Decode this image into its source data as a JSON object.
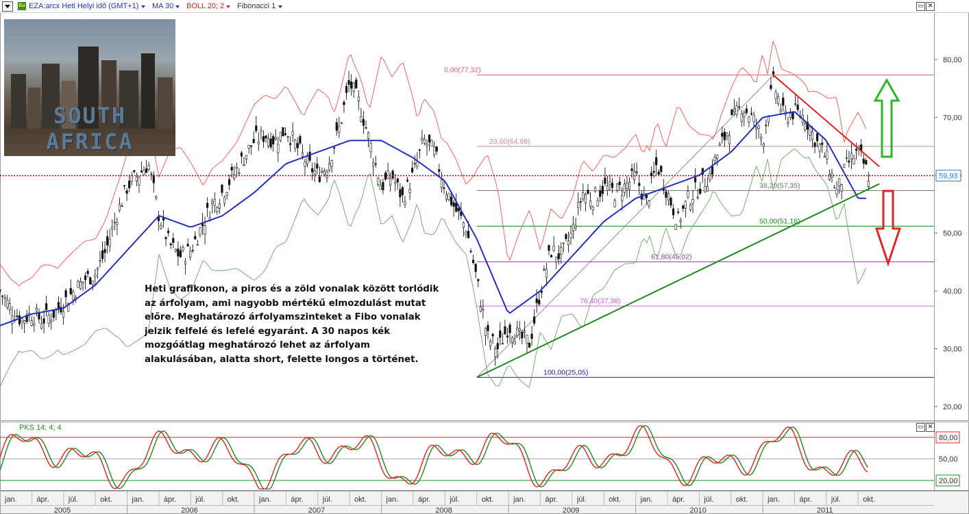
{
  "header": {
    "instrument": "EZA:arcx Heti Helyi idő (GMT+1)",
    "ma": "MA 30",
    "boll": "BOLL 20; 2",
    "fibo": "Fibonacci 1",
    "pks": "PKS 14; 4; 4"
  },
  "photo_caption": "SOUTH AFRICA",
  "comment": "Heti grafikonon, a piros és a zöld vonalak között torlódik az árfolyam, ami nagyobb mértékű elmozdulást mutat előre. Meghatározó árfolyamszinteket a Fibo vonalak jelzik felfelé és lefelé egyaránt. A 30 napos kék mozgóátlag meghatározó lehet az árfolyam alakulásában, alatta short, felette longos a történet.",
  "colors": {
    "price": "#1a1a1a",
    "ma": "#1f2fbf",
    "boll_upper": "#ff5050",
    "boll_lower": "#6aa56a",
    "resistance": "#e62020",
    "support": "#1e8a1e",
    "stoch_k": "#e62020",
    "stoch_d": "#1e8a1e"
  },
  "icons": {
    "up_arrow": "green-up-arrow",
    "down_arrow": "red-down-arrow"
  },
  "chart_data": [
    {
      "type": "candlestick",
      "title": "EZA:arcx Heti",
      "ylim": [
        20,
        85
      ],
      "yticks": [
        "20,00",
        "30,00",
        "40,00",
        "50,00",
        "60,00",
        "70,00",
        "80,00"
      ],
      "current_price": "59,93",
      "x_months": [
        "jan.",
        "ápr.",
        "júl.",
        "okt.",
        "jan.",
        "ápr.",
        "júl.",
        "okt.",
        "jan.",
        "ápr.",
        "júl.",
        "okt.",
        "jan.",
        "ápr.",
        "júl.",
        "okt.",
        "jan.",
        "ápr.",
        "júl.",
        "okt.",
        "jan.",
        "ápr.",
        "júl.",
        "okt.",
        "jan.",
        "ápr.",
        "júl.",
        "okt."
      ],
      "x_years": [
        "2005",
        "2006",
        "2007",
        "2008",
        "2009",
        "2010",
        "2011"
      ],
      "close_path": [
        [
          "2005-01",
          40
        ],
        [
          "2005-02",
          37
        ],
        [
          "2005-03",
          35
        ],
        [
          "2005-04",
          36
        ],
        [
          "2005-05",
          35
        ],
        [
          "2005-06",
          36
        ],
        [
          "2005-07",
          38
        ],
        [
          "2005-08",
          40
        ],
        [
          "2005-09",
          42
        ],
        [
          "2005-10",
          43
        ],
        [
          "2005-11",
          47
        ],
        [
          "2005-12",
          53
        ],
        [
          "2006-01",
          58
        ],
        [
          "2006-02",
          60
        ],
        [
          "2006-03",
          62
        ],
        [
          "2006-04",
          53
        ],
        [
          "2006-05",
          48
        ],
        [
          "2006-06",
          46
        ],
        [
          "2006-07",
          47
        ],
        [
          "2006-08",
          51
        ],
        [
          "2006-09",
          55
        ],
        [
          "2006-10",
          57
        ],
        [
          "2006-11",
          60
        ],
        [
          "2006-12",
          63
        ],
        [
          "2007-01",
          66
        ],
        [
          "2007-02",
          67
        ],
        [
          "2007-03",
          66
        ],
        [
          "2007-04",
          68
        ],
        [
          "2007-05",
          65
        ],
        [
          "2007-06",
          62
        ],
        [
          "2007-07",
          60
        ],
        [
          "2007-08",
          62
        ],
        [
          "2007-09",
          68
        ],
        [
          "2007-10",
          76
        ],
        [
          "2007-11",
          72
        ],
        [
          "2007-12",
          65
        ],
        [
          "2008-01",
          58
        ],
        [
          "2008-02",
          60
        ],
        [
          "2008-03",
          56
        ],
        [
          "2008-04",
          60
        ],
        [
          "2008-05",
          66
        ],
        [
          "2008-06",
          64
        ],
        [
          "2008-07",
          58
        ],
        [
          "2008-08",
          54
        ],
        [
          "2008-09",
          51
        ],
        [
          "2008-10",
          42
        ],
        [
          "2008-11",
          32
        ],
        [
          "2008-12",
          30
        ],
        [
          "2009-01",
          34
        ],
        [
          "2009-02",
          32
        ],
        [
          "2009-03",
          31
        ],
        [
          "2009-04",
          40
        ],
        [
          "2009-05",
          47
        ],
        [
          "2009-06",
          46
        ],
        [
          "2009-07",
          50
        ],
        [
          "2009-08",
          57
        ],
        [
          "2009-09",
          56
        ],
        [
          "2009-10",
          58
        ],
        [
          "2009-11",
          57
        ],
        [
          "2009-12",
          58
        ],
        [
          "2010-01",
          60
        ],
        [
          "2010-02",
          55
        ],
        [
          "2010-03",
          62
        ],
        [
          "2010-04",
          57
        ],
        [
          "2010-05",
          52
        ],
        [
          "2010-06",
          56
        ],
        [
          "2010-07",
          58
        ],
        [
          "2010-08",
          60
        ],
        [
          "2010-09",
          65
        ],
        [
          "2010-10",
          69
        ],
        [
          "2010-11",
          72
        ],
        [
          "2010-12",
          70
        ],
        [
          "2011-01",
          66
        ],
        [
          "2011-02",
          76
        ],
        [
          "2011-03",
          70
        ],
        [
          "2011-04",
          71
        ],
        [
          "2011-05",
          70
        ],
        [
          "2011-06",
          66
        ],
        [
          "2011-07",
          63
        ],
        [
          "2011-08",
          57
        ],
        [
          "2011-09",
          62
        ],
        [
          "2011-10",
          64
        ],
        [
          "2011-11",
          60
        ]
      ],
      "ma30_path": [
        [
          "2005-01",
          34
        ],
        [
          "2005-04",
          36
        ],
        [
          "2005-07",
          37
        ],
        [
          "2005-10",
          41
        ],
        [
          "2006-01",
          47
        ],
        [
          "2006-04",
          53
        ],
        [
          "2006-07",
          51
        ],
        [
          "2006-10",
          53
        ],
        [
          "2007-01",
          57
        ],
        [
          "2007-04",
          62
        ],
        [
          "2007-07",
          64
        ],
        [
          "2007-10",
          66
        ],
        [
          "2008-01",
          66
        ],
        [
          "2008-04",
          63
        ],
        [
          "2008-07",
          59
        ],
        [
          "2008-10",
          49
        ],
        [
          "2009-01",
          36
        ],
        [
          "2009-04",
          40
        ],
        [
          "2009-07",
          46
        ],
        [
          "2009-10",
          52
        ],
        [
          "2010-01",
          56
        ],
        [
          "2010-04",
          58
        ],
        [
          "2010-07",
          60
        ],
        [
          "2010-10",
          64
        ],
        [
          "2011-01",
          70
        ],
        [
          "2011-04",
          71
        ],
        [
          "2011-07",
          66
        ],
        [
          "2011-10",
          56
        ]
      ],
      "fibonacci": [
        {
          "label": "0,00(77,32)",
          "value": 77.32,
          "color": "#e06060"
        },
        {
          "label": "23,60(64,98)",
          "value": 64.98,
          "color": "#c09090"
        },
        {
          "label": "38,20(57,35)",
          "value": 57.35,
          "color": "#707070"
        },
        {
          "label": "50,00(51,18)",
          "value": 51.18,
          "color": "#1e8a1e"
        },
        {
          "label": "61,80(45,02)",
          "value": 45.02,
          "color": "#9040a0"
        },
        {
          "label": "76,40(37,38)",
          "value": 37.38,
          "color": "#d060d0"
        },
        {
          "label": "100,00(25,05)",
          "value": 25.05,
          "color": "#2020a0"
        }
      ],
      "resistance_line": [
        [
          "2011-02",
          77.3
        ],
        [
          "2011-12",
          61.5
        ]
      ],
      "support_line": [
        [
          "2008-10",
          25.05
        ],
        [
          "2011-12",
          58.5
        ]
      ]
    },
    {
      "type": "line",
      "title": "PKS 14; 4; 4",
      "ylim": [
        0,
        100
      ],
      "levels": [
        {
          "label": "80,00",
          "value": 80
        },
        {
          "label": "50,00",
          "value": 50
        },
        {
          "label": "20,00",
          "value": 20
        }
      ]
    }
  ]
}
